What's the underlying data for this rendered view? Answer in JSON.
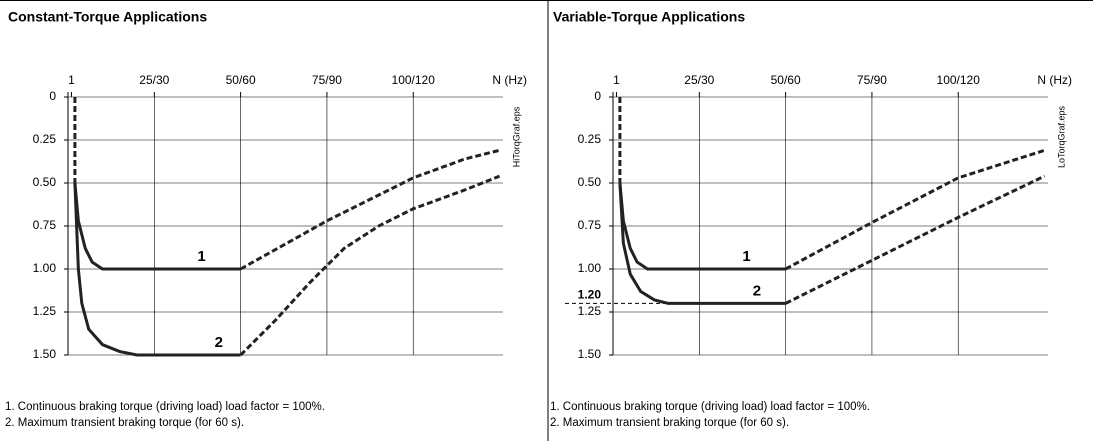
{
  "chart_data": [
    {
      "type": "line",
      "title": "Constant-Torque Applications",
      "x_label": "N (Hz)",
      "side_label": "HiTorqGraf.eps",
      "xlim": [
        0,
        126
      ],
      "xticks": [
        1,
        {
          "value": 25,
          "label": "25/30"
        },
        {
          "value": 50,
          "label": "50/60"
        },
        {
          "value": 75,
          "label": "75/90"
        },
        {
          "value": 100,
          "label": "100/120"
        }
      ],
      "ylim": [
        0,
        1.5
      ],
      "y_inverted": true,
      "yticks": [
        0,
        {
          "value": 0.25,
          "label": "0.25"
        },
        {
          "value": 0.5,
          "label": "0.50"
        },
        {
          "value": 0.75,
          "label": "0.75"
        },
        {
          "value": 1,
          "label": "1.00"
        },
        {
          "value": 1.25,
          "label": "1.25"
        },
        {
          "value": 1.5,
          "label": "1.50"
        }
      ],
      "grid": true,
      "color": "#222222",
      "series": [
        {
          "dash": true,
          "x": [
            2,
            2
          ],
          "values": [
            0,
            0.5
          ]
        },
        {
          "name": "1",
          "x": [
            2,
            3,
            5,
            7,
            10,
            50
          ],
          "values": [
            0.5,
            0.72,
            0.88,
            0.96,
            1.0,
            1.0
          ]
        },
        {
          "dash": true,
          "x": [
            50,
            75,
            100,
            115,
            125
          ],
          "values": [
            1.0,
            0.72,
            0.47,
            0.36,
            0.31
          ]
        },
        {
          "name": "2",
          "x": [
            2,
            3,
            4,
            6,
            10,
            15,
            20,
            50
          ],
          "values": [
            0.5,
            1.0,
            1.2,
            1.35,
            1.44,
            1.48,
            1.5,
            1.5
          ]
        },
        {
          "dash": true,
          "x": [
            50,
            60,
            70,
            80,
            90,
            100,
            115,
            125
          ],
          "values": [
            1.5,
            1.3,
            1.08,
            0.88,
            0.75,
            0.65,
            0.54,
            0.46
          ]
        }
      ],
      "notes": [
        "1. Continuous braking torque (driving load) load factor = 100%.",
        "2. Maximum transient braking torque (for 60 s)."
      ]
    },
    {
      "type": "line",
      "title": "Variable-Torque Applications",
      "x_label": "N (Hz)",
      "side_label": "LoTorqGraf.eps",
      "xlim": [
        0,
        126
      ],
      "xticks": [
        1,
        {
          "value": 25,
          "label": "25/30"
        },
        {
          "value": 50,
          "label": "50/60"
        },
        {
          "value": 75,
          "label": "75/90"
        },
        {
          "value": 100,
          "label": "100/120"
        }
      ],
      "ylim": [
        0,
        1.5
      ],
      "y_inverted": true,
      "yticks": [
        0,
        {
          "value": 0.25,
          "label": "0.25"
        },
        {
          "value": 0.5,
          "label": "0.50"
        },
        {
          "value": 0.75,
          "label": "0.75"
        },
        {
          "value": 1,
          "label": "1.00"
        },
        {
          "value": 1.25,
          "label": "1.25"
        },
        {
          "value": 1.5,
          "label": "1.50"
        }
      ],
      "grid": true,
      "color": "#222222",
      "reference_line": {
        "value": 1.2,
        "label": "1.20"
      },
      "series": [
        {
          "dash": true,
          "x": [
            2,
            2
          ],
          "values": [
            0,
            0.5
          ]
        },
        {
          "name": "1",
          "x": [
            2,
            3,
            5,
            7,
            10,
            50
          ],
          "values": [
            0.5,
            0.72,
            0.88,
            0.96,
            1.0,
            1.0
          ]
        },
        {
          "dash": true,
          "x": [
            50,
            75,
            100,
            125
          ],
          "values": [
            1.0,
            0.73,
            0.47,
            0.31
          ]
        },
        {
          "name": "2",
          "x": [
            2,
            3,
            5,
            8,
            12,
            16,
            50
          ],
          "values": [
            0.5,
            0.85,
            1.03,
            1.13,
            1.18,
            1.2,
            1.2
          ]
        },
        {
          "dash": true,
          "x": [
            50,
            75,
            100,
            125
          ],
          "values": [
            1.2,
            0.95,
            0.7,
            0.46
          ]
        }
      ],
      "notes": [
        "1. Continuous braking torque (driving load) load factor = 100%.",
        "2. Maximum transient braking torque (for 60 s)."
      ]
    }
  ]
}
